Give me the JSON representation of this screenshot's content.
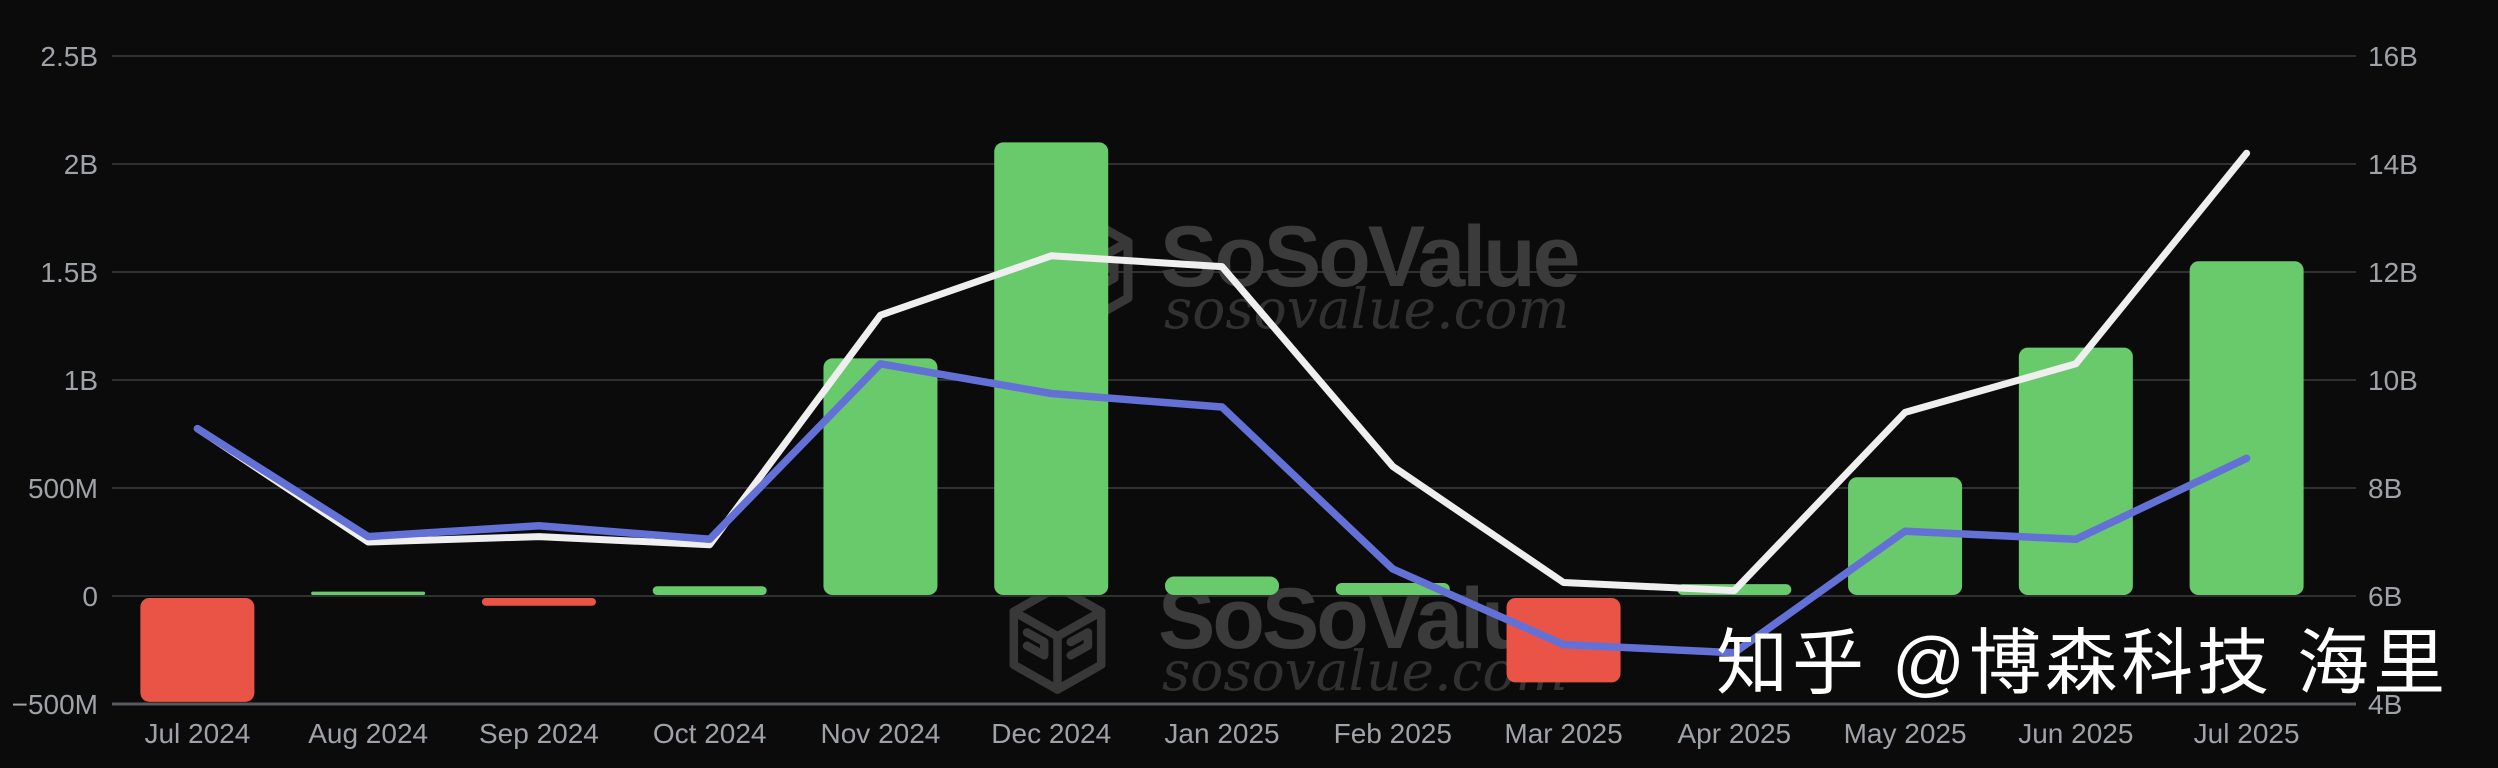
{
  "watermarks": {
    "brand": "SoSoValue",
    "domain": "sosovalue.com",
    "credit": "知乎 @博森科技 海里"
  },
  "colors": {
    "background": "#0b0b0c",
    "gridline": "#2f3032",
    "axis_line": "#56595e",
    "label": "#9fa2a6",
    "bar_positive": "#68ca6b",
    "bar_negative": "#ea5447",
    "line_white": "#efefef",
    "line_blue": "#6371d6",
    "watermark": "#3a3a3a",
    "credit": "#ffffff"
  },
  "chart_data": {
    "type": "combo",
    "grid": true,
    "legend": false,
    "title": "",
    "categories": [
      "Jul 2024",
      "Aug 2024",
      "Sep 2024",
      "Oct 2024",
      "Nov 2024",
      "Dec 2024",
      "Jan 2025",
      "Feb 2025",
      "Mar 2025",
      "Apr 2025",
      "May 2025",
      "Jun 2025",
      "Jul 2025"
    ],
    "left_axis": {
      "unit": "USD (millions)",
      "min": -500,
      "max": 2500,
      "ticks": [
        {
          "label": "2.5B",
          "value": 2500
        },
        {
          "label": "2B",
          "value": 2000
        },
        {
          "label": "1.5B",
          "value": 1500
        },
        {
          "label": "1B",
          "value": 1000
        },
        {
          "label": "500M",
          "value": 500
        },
        {
          "label": "0",
          "value": 0
        },
        {
          "label": "−500M",
          "value": -500
        }
      ]
    },
    "right_axis": {
      "unit": "USD (billions)",
      "min": 4,
      "max": 16,
      "ticks": [
        {
          "label": "16B",
          "value": 16
        },
        {
          "label": "14B",
          "value": 14
        },
        {
          "label": "12B",
          "value": 12
        },
        {
          "label": "10B",
          "value": 10
        },
        {
          "label": "8B",
          "value": 8
        },
        {
          "label": "6B",
          "value": 6
        },
        {
          "label": "4B",
          "value": 4
        }
      ]
    },
    "series": [
      {
        "id": "monthly-bars",
        "type": "bar",
        "axis": "left",
        "values": [
          -490,
          20,
          -45,
          45,
          1100,
          2100,
          90,
          60,
          -400,
          55,
          550,
          1150,
          1550
        ]
      },
      {
        "id": "white-line",
        "type": "line",
        "axis": "right",
        "values": [
          9.1,
          7.0,
          7.1,
          6.95,
          11.2,
          12.3,
          12.1,
          8.4,
          6.25,
          6.1,
          9.4,
          10.3,
          14.2
        ]
      },
      {
        "id": "blue-line",
        "type": "line",
        "axis": "right",
        "values": [
          9.1,
          7.1,
          7.3,
          7.05,
          10.3,
          9.75,
          9.5,
          6.5,
          5.1,
          4.95,
          7.2,
          7.05,
          8.55
        ]
      }
    ]
  }
}
